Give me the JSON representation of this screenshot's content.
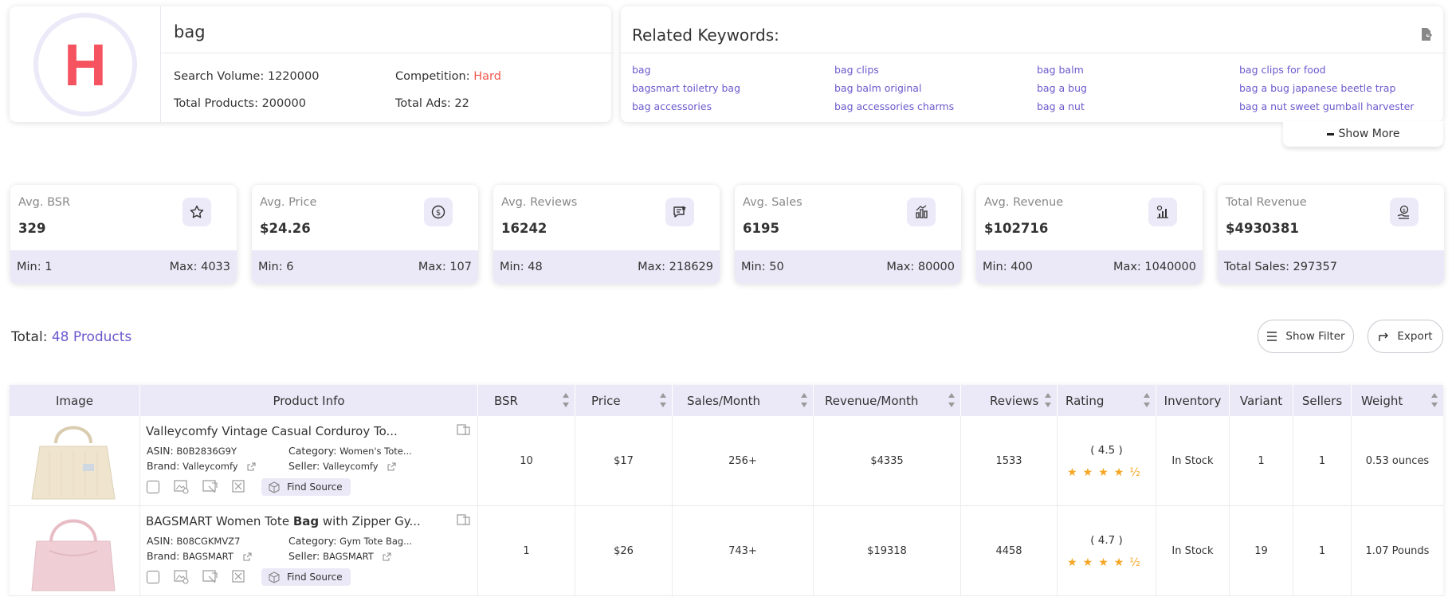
{
  "keyword": {
    "badge_letter": "H",
    "term": "bag",
    "search_volume_label": "Search Volume:",
    "search_volume": "1220000",
    "competition_label": "Competition:",
    "competition": "Hard",
    "total_products_label": "Total Products:",
    "total_products": "200000",
    "total_ads_label": "Total Ads:",
    "total_ads": "22"
  },
  "related": {
    "title": "Related Keywords:",
    "items": [
      "bag",
      "bag clips",
      "bag balm",
      "bag clips for food",
      "bagsmart toiletry bag",
      "bag balm original",
      "bag a bug",
      "bag a bug japanese beetle trap",
      "bag accessories",
      "bag accessories charms",
      "bag a nut",
      "bag a nut sweet gumball harvester"
    ],
    "show_more": "Show More"
  },
  "stats": [
    {
      "label": "Avg. BSR",
      "value": "329",
      "left": "Min: 1",
      "right": "Max: 4033",
      "icon": "star-icon"
    },
    {
      "label": "Avg. Price",
      "value": "$24.26",
      "left": "Min: 6",
      "right": "Max: 107",
      "icon": "dollar-icon"
    },
    {
      "label": "Avg. Reviews",
      "value": "16242",
      "left": "Min: 48",
      "right": "Max: 218629",
      "icon": "reviews-icon"
    },
    {
      "label": "Avg. Sales",
      "value": "6195",
      "left": "Min: 50",
      "right": "Max: 80000",
      "icon": "sales-icon"
    },
    {
      "label": "Avg. Revenue",
      "value": "$102716",
      "left": "Min: 400",
      "right": "Max: 1040000",
      "icon": "revenue-chart-icon"
    },
    {
      "label": "Total Revenue",
      "value": "$4930381",
      "left": "Total Sales: 297357",
      "right": "",
      "icon": "money-hand-icon"
    }
  ],
  "summary": {
    "total_label": "Total:",
    "total_count": "48 Products",
    "show_filter": "Show Filter",
    "export": "Export"
  },
  "table": {
    "headers": [
      "Image",
      "Product Info",
      "BSR",
      "Price",
      "Sales/Month",
      "Revenue/Month",
      "Reviews",
      "Rating",
      "Inventory",
      "Variant",
      "Sellers",
      "Weight"
    ],
    "find_source": "Find Source",
    "rows": [
      {
        "title": "Valleycomfy Vintage Casual Corduroy To...",
        "title_bold": "",
        "title_rest": "",
        "asin_label": "ASIN:",
        "asin": "B0B2836G9Y",
        "category_label": "Category:",
        "category": "Women's Tote...",
        "brand_label": "Brand:",
        "brand": "Valleycomfy",
        "seller_label": "Seller:",
        "seller": "Valleycomfy",
        "bsr": "10",
        "price": "$17",
        "sales": "256+",
        "revenue": "$4335",
        "reviews": "1533",
        "rating": "( 4.5 )",
        "rating_value": 4.5,
        "inventory": "In Stock",
        "variant": "1",
        "sellers": "1",
        "weight": "0.53 ounces",
        "image_color": "#efe5cf"
      },
      {
        "title": "BAGSMART Women Tote ",
        "title_bold": "Bag",
        "title_rest": " with Zipper Gy...",
        "asin_label": "ASIN:",
        "asin": "B08CGKMVZ7",
        "category_label": "Category:",
        "category": "Gym Tote Bag...",
        "brand_label": "Brand:",
        "brand": "BAGSMART",
        "seller_label": "Seller:",
        "seller": "BAGSMART",
        "bsr": "1",
        "price": "$26",
        "sales": "743+",
        "revenue": "$19318",
        "reviews": "4458",
        "rating": "( 4.7 )",
        "rating_value": 4.7,
        "inventory": "In Stock",
        "variant": "19",
        "sellers": "1",
        "weight": "1.07 Pounds",
        "image_color": "#efcfd5"
      }
    ]
  },
  "colors": {
    "accent": "#6a5acd",
    "hard": "#f0564a",
    "badge": "#f4535f",
    "star": "#f6a623",
    "panel": "#ebe9f7"
  }
}
